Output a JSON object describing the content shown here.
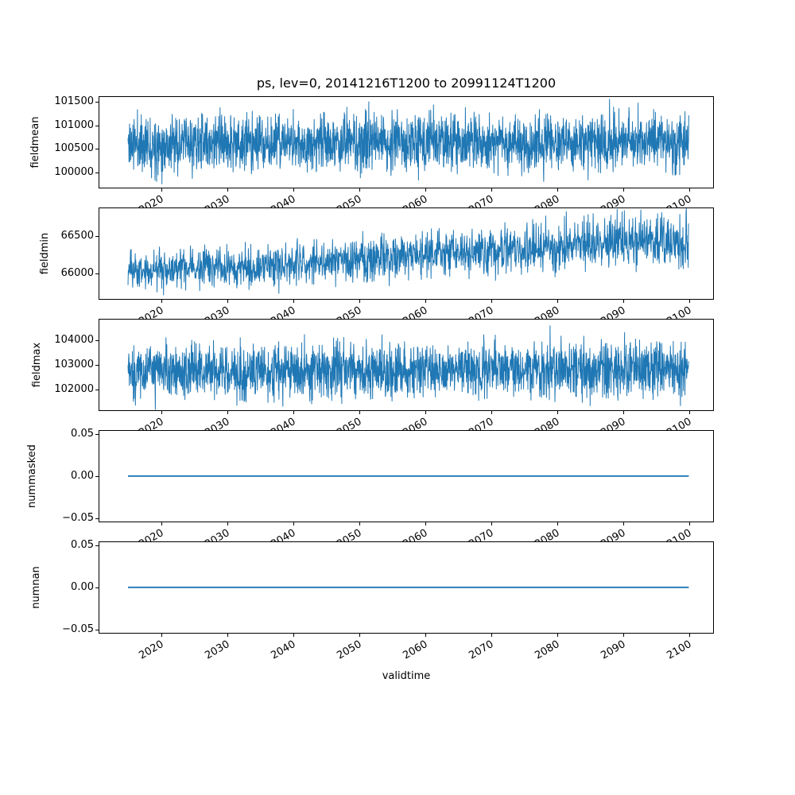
{
  "figure": {
    "title": "ps, lev=0, 20141216T1200 to 20991124T1200",
    "xlabel": "validtime",
    "background": "#ffffff",
    "line_color": "#1f77b4",
    "axis_color": "#000000"
  },
  "chart_data": {
    "type": "line",
    "title": "ps, lev=0, 20141216T1200 to 20991124T1200",
    "xlabel": "validtime",
    "grid": false,
    "legend": false,
    "line_color": "#1f77b4",
    "x_start": 2014.96,
    "x_end": 2099.9,
    "xlim": [
      2010.5,
      2103.7
    ],
    "xticks": [
      {
        "value": 2020,
        "label": "2020"
      },
      {
        "value": 2030,
        "label": "2030"
      },
      {
        "value": 2040,
        "label": "2040"
      },
      {
        "value": 2050,
        "label": "2050"
      },
      {
        "value": 2060,
        "label": "2060"
      },
      {
        "value": 2070,
        "label": "2070"
      },
      {
        "value": 2080,
        "label": "2080"
      },
      {
        "value": 2090,
        "label": "2090"
      },
      {
        "value": 2100,
        "label": "2100"
      }
    ],
    "xtick_rotation_deg": 30,
    "subplots": [
      {
        "ylabel": "fieldmean",
        "ylim": [
          99663,
          101618
        ],
        "yticks": [
          {
            "value": 101500,
            "label": "101500"
          },
          {
            "value": 101000,
            "label": "101000"
          },
          {
            "value": 100500,
            "label": "100500"
          },
          {
            "value": 100000,
            "label": "100000"
          }
        ],
        "series": {
          "kind": "noise",
          "seed": 11,
          "points": 2200,
          "line_width": 1,
          "envelope": [
            {
              "x": 2015,
              "mean": 100610,
              "amp": 500
            },
            {
              "x": 2100,
              "mean": 100650,
              "amp": 520
            }
          ]
        },
        "observed": {
          "approx_mean": 100620,
          "approx_min": 99760,
          "approx_max": 101550,
          "trend": "stationary"
        }
      },
      {
        "ylabel": "fieldmin",
        "ylim": [
          65649,
          66883
        ],
        "yticks": [
          {
            "value": 66500,
            "label": "66500"
          },
          {
            "value": 66000,
            "label": "66000"
          }
        ],
        "series": {
          "kind": "noise",
          "seed": 23,
          "points": 1800,
          "line_width": 1,
          "envelope": [
            {
              "x": 2015,
              "mean": 66040,
              "amp": 215
            },
            {
              "x": 2035,
              "mean": 66110,
              "amp": 225
            },
            {
              "x": 2055,
              "mean": 66210,
              "amp": 245
            },
            {
              "x": 2075,
              "mean": 66320,
              "amp": 270
            },
            {
              "x": 2090,
              "mean": 66440,
              "amp": 295
            },
            {
              "x": 2100,
              "mean": 66420,
              "amp": 305
            }
          ]
        },
        "observed": {
          "approx_start_mean": 66040,
          "approx_end_mean": 66430,
          "approx_min": 65690,
          "approx_max": 66850,
          "trend": "increasing"
        }
      },
      {
        "ylabel": "fieldmax",
        "ylim": [
          101129,
          104871
        ],
        "yticks": [
          {
            "value": 104000,
            "label": "104000"
          },
          {
            "value": 103000,
            "label": "103000"
          },
          {
            "value": 102000,
            "label": "102000"
          }
        ],
        "series": {
          "kind": "noise",
          "seed": 37,
          "points": 2200,
          "line_width": 1,
          "envelope": [
            {
              "x": 2015,
              "mean": 102730,
              "amp": 930
            },
            {
              "x": 2100,
              "mean": 102800,
              "amp": 960
            }
          ]
        },
        "observed": {
          "approx_mean": 102760,
          "approx_min": 101360,
          "approx_max": 104580,
          "trend": "stationary"
        }
      },
      {
        "ylabel": "nummasked",
        "ylim": [
          -0.0552,
          0.0548
        ],
        "yticks": [
          {
            "value": 0.05,
            "label": "0.05"
          },
          {
            "value": 0.0,
            "label": "0.00"
          },
          {
            "value": -0.05,
            "label": "−0.05"
          }
        ],
        "series": {
          "kind": "constant",
          "value": 0,
          "line_width": 1.8
        },
        "observed": {
          "constant_value": 0.0
        }
      },
      {
        "ylabel": "numnan",
        "ylim": [
          -0.0552,
          0.0548
        ],
        "yticks": [
          {
            "value": 0.05,
            "label": "0.05"
          },
          {
            "value": 0.0,
            "label": "0.00"
          },
          {
            "value": -0.05,
            "label": "−0.05"
          }
        ],
        "series": {
          "kind": "constant",
          "value": 0,
          "line_width": 1.8
        },
        "observed": {
          "constant_value": 0.0
        }
      }
    ]
  }
}
